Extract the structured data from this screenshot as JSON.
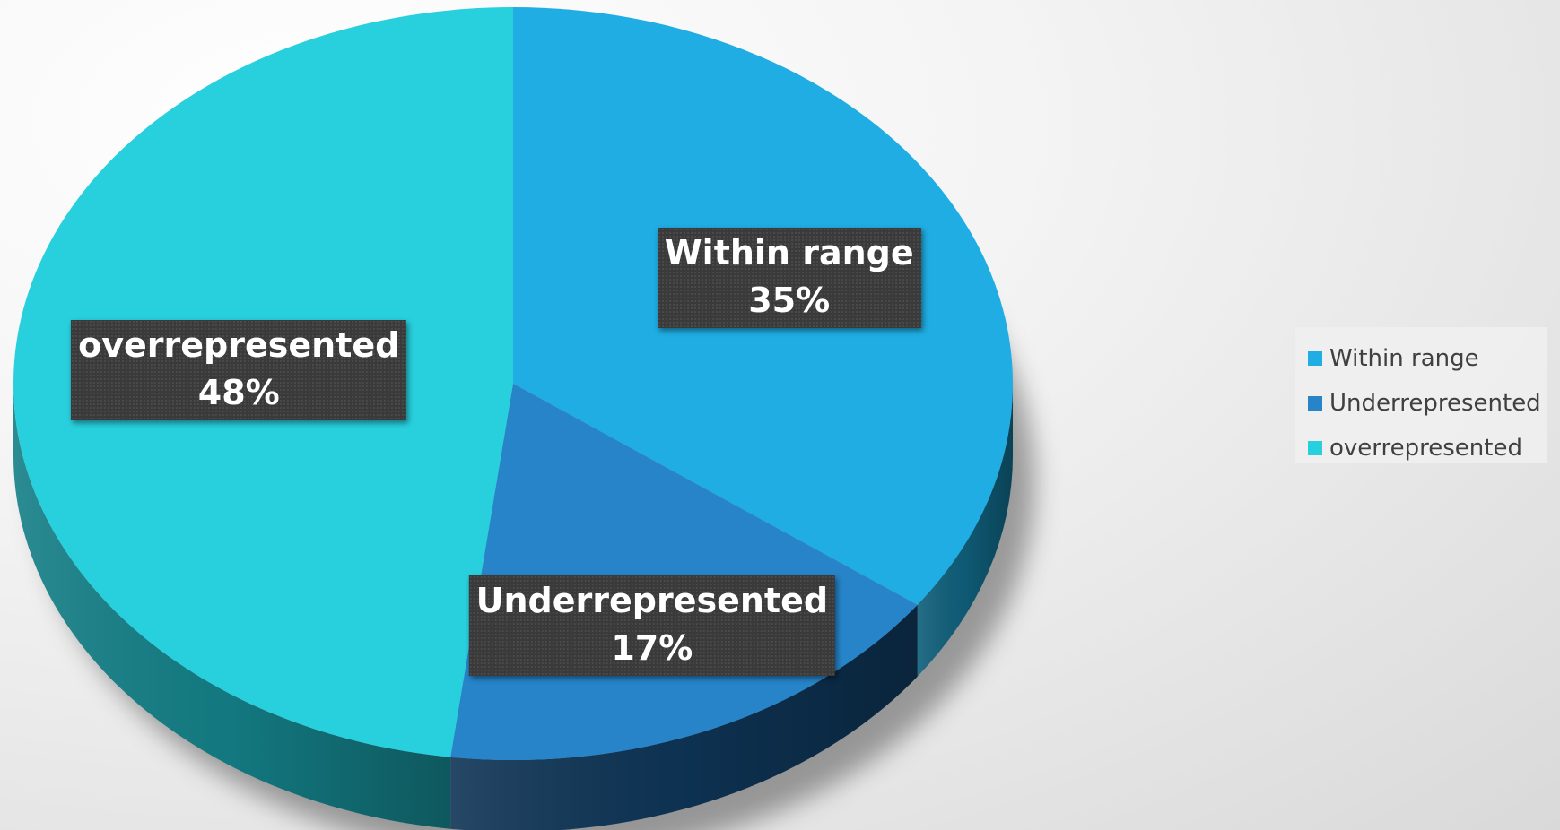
{
  "chart_data": {
    "type": "pie",
    "style": "3d",
    "categories": [
      "Within range",
      "Underrepresented",
      "overrepresented"
    ],
    "values": [
      35,
      17,
      48
    ],
    "percent_labels": [
      "35%",
      "17%",
      "48%"
    ],
    "colors": [
      "#20ADE3",
      "#2784C9",
      "#28D0DE"
    ],
    "side_colors": [
      "#0F5E7A",
      "#0E3455",
      "#147E86"
    ],
    "legend": "right"
  },
  "legend": {
    "items": [
      {
        "label": "Within range",
        "color": "#20ADE3"
      },
      {
        "label": "Underrepresented",
        "color": "#2784C9"
      },
      {
        "label": "overrepresented",
        "color": "#28D0DE"
      }
    ]
  }
}
